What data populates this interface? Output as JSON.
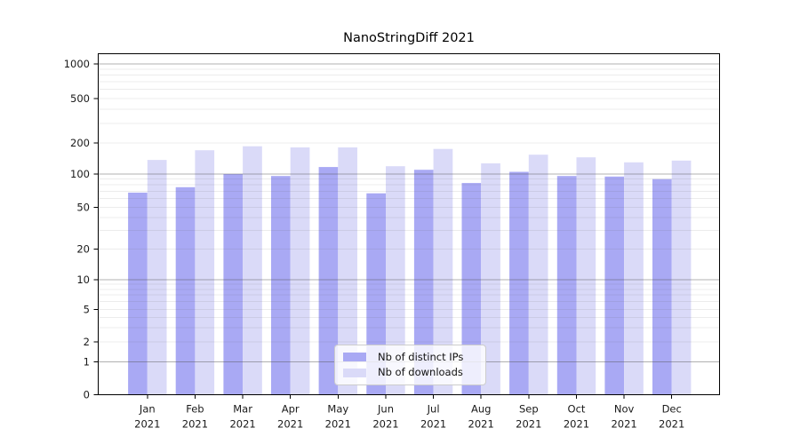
{
  "chart_data": {
    "type": "bar",
    "title": "NanoStringDiff 2021",
    "categories": [
      "Jan",
      "Feb",
      "Mar",
      "Apr",
      "May",
      "Jun",
      "Jul",
      "Aug",
      "Sep",
      "Oct",
      "Nov",
      "Dec"
    ],
    "x_tick_second_line": "2021",
    "series": [
      {
        "name": "Nb of distinct IPs",
        "color": "#a9a9f4",
        "values": [
          68,
          76,
          100,
          96,
          117,
          67,
          110,
          83,
          105,
          96,
          95,
          90
        ]
      },
      {
        "name": "Nb of downloads",
        "color": "#dadaf8",
        "values": [
          137,
          170,
          186,
          181,
          181,
          119,
          175,
          127,
          154,
          145,
          130,
          135
        ]
      }
    ],
    "y_ticks": [
      0,
      1,
      2,
      5,
      10,
      20,
      50,
      100,
      200,
      500,
      1000
    ],
    "y_scale": "log-like (0,1,2,5,10,20,50,100,200,500,1000)",
    "ylim": [
      0,
      1230
    ],
    "grid": "horizontal major and log-minor gridlines",
    "legend_position": "inside bottom-center",
    "colors": {
      "axis": "#000000",
      "major_grid": "#b0b0b0",
      "minor_grid": "#e9e9e9",
      "text": "#1a1a1a"
    }
  }
}
